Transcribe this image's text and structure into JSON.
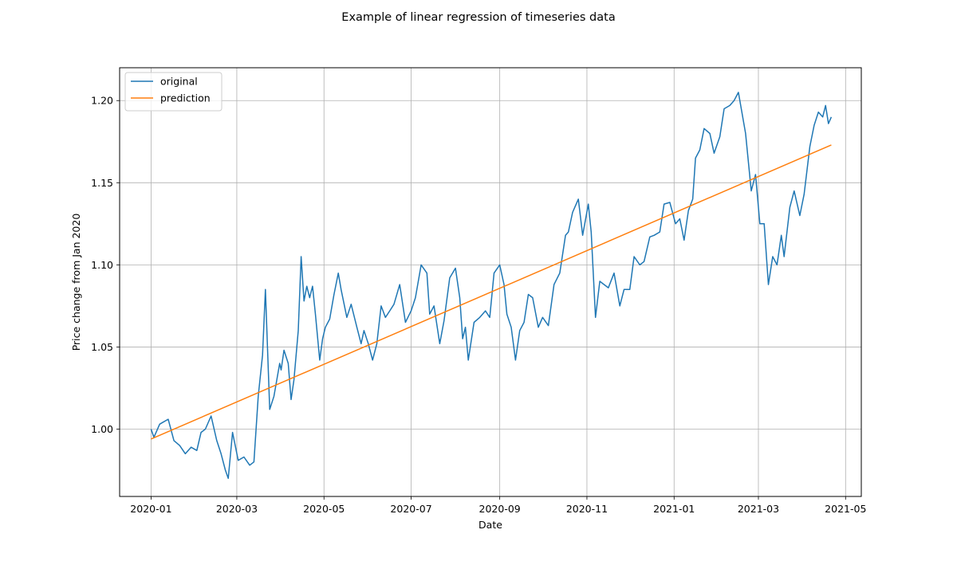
{
  "chart_data": {
    "type": "line",
    "title": "Example of linear regression of timeseries data",
    "xlabel": "Date",
    "ylabel": "Price change from Jan 2020",
    "x_ticks": [
      "2020-01",
      "2020-03",
      "2020-05",
      "2020-07",
      "2020-09",
      "2020-11",
      "2021-01",
      "2021-03",
      "2021-05"
    ],
    "y_ticks": [
      "1.00",
      "1.05",
      "1.10",
      "1.15",
      "1.20"
    ],
    "xlim": [
      "2019-12-10",
      "2021-05-12"
    ],
    "ylim": [
      0.959,
      1.22
    ],
    "grid": true,
    "legend_position": "top-left",
    "series": [
      {
        "name": "original",
        "color": "#1f77b4",
        "x": [
          "2020-01-01",
          "2020-01-03",
          "2020-01-07",
          "2020-01-09",
          "2020-01-13",
          "2020-01-17",
          "2020-01-21",
          "2020-01-25",
          "2020-01-29",
          "2020-02-02",
          "2020-02-05",
          "2020-02-08",
          "2020-02-12",
          "2020-02-16",
          "2020-02-19",
          "2020-02-22",
          "2020-02-24",
          "2020-02-27",
          "2020-03-02",
          "2020-03-06",
          "2020-03-10",
          "2020-03-13",
          "2020-03-16",
          "2020-03-19",
          "2020-03-21",
          "2020-03-24",
          "2020-03-27",
          "2020-03-31",
          "2020-04-01",
          "2020-04-03",
          "2020-04-06",
          "2020-04-08",
          "2020-04-10",
          "2020-04-13",
          "2020-04-15",
          "2020-04-17",
          "2020-04-19",
          "2020-04-21",
          "2020-04-23",
          "2020-04-25",
          "2020-04-28",
          "2020-04-30",
          "2020-05-02",
          "2020-05-05",
          "2020-05-08",
          "2020-05-11",
          "2020-05-13",
          "2020-05-17",
          "2020-05-20",
          "2020-05-24",
          "2020-05-27",
          "2020-05-29",
          "2020-06-01",
          "2020-06-04",
          "2020-06-07",
          "2020-06-10",
          "2020-06-13",
          "2020-06-16",
          "2020-06-19",
          "2020-06-23",
          "2020-06-27",
          "2020-07-01",
          "2020-07-04",
          "2020-07-08",
          "2020-07-12",
          "2020-07-14",
          "2020-07-17",
          "2020-07-21",
          "2020-07-24",
          "2020-07-28",
          "2020-08-01",
          "2020-08-04",
          "2020-08-06",
          "2020-08-08",
          "2020-08-10",
          "2020-08-14",
          "2020-08-18",
          "2020-08-22",
          "2020-08-25",
          "2020-08-28",
          "2020-09-01",
          "2020-09-04",
          "2020-09-06",
          "2020-09-09",
          "2020-09-12",
          "2020-09-15",
          "2020-09-18",
          "2020-09-21",
          "2020-09-24",
          "2020-09-28",
          "2020-10-01",
          "2020-10-05",
          "2020-10-09",
          "2020-10-13",
          "2020-10-17",
          "2020-10-19",
          "2020-10-22",
          "2020-10-26",
          "2020-10-29",
          "2020-11-02",
          "2020-11-04",
          "2020-11-07",
          "2020-11-10",
          "2020-11-13",
          "2020-11-16",
          "2020-11-20",
          "2020-11-24",
          "2020-11-27",
          "2020-12-01",
          "2020-12-04",
          "2020-12-08",
          "2020-12-11",
          "2020-12-15",
          "2020-12-18",
          "2020-12-22",
          "2020-12-25",
          "2020-12-29",
          "2021-01-02",
          "2021-01-05",
          "2021-01-08",
          "2021-01-11",
          "2021-01-14",
          "2021-01-16",
          "2021-01-19",
          "2021-01-22",
          "2021-01-26",
          "2021-01-29",
          "2021-02-02",
          "2021-02-05",
          "2021-02-09",
          "2021-02-12",
          "2021-02-15",
          "2021-02-17",
          "2021-02-20",
          "2021-02-24",
          "2021-02-27",
          "2021-03-02",
          "2021-03-05",
          "2021-03-08",
          "2021-03-11",
          "2021-03-14",
          "2021-03-17",
          "2021-03-19",
          "2021-03-23",
          "2021-03-26",
          "2021-03-30",
          "2021-04-02",
          "2021-04-06",
          "2021-04-09",
          "2021-04-12",
          "2021-04-15",
          "2021-04-17",
          "2021-04-19",
          "2021-04-21"
        ],
        "y": [
          1.0,
          0.995,
          1.003,
          1.004,
          1.006,
          0.993,
          0.99,
          0.985,
          0.989,
          0.987,
          0.998,
          1.0,
          1.008,
          0.993,
          0.985,
          0.975,
          0.97,
          0.998,
          0.981,
          0.983,
          0.978,
          0.98,
          1.02,
          1.045,
          1.085,
          1.012,
          1.02,
          1.04,
          1.036,
          1.048,
          1.04,
          1.018,
          1.03,
          1.06,
          1.105,
          1.078,
          1.087,
          1.08,
          1.087,
          1.07,
          1.042,
          1.055,
          1.062,
          1.067,
          1.082,
          1.095,
          1.085,
          1.068,
          1.076,
          1.062,
          1.052,
          1.06,
          1.052,
          1.042,
          1.052,
          1.075,
          1.068,
          1.072,
          1.076,
          1.088,
          1.065,
          1.072,
          1.08,
          1.1,
          1.095,
          1.07,
          1.075,
          1.052,
          1.066,
          1.092,
          1.098,
          1.08,
          1.055,
          1.062,
          1.042,
          1.065,
          1.068,
          1.072,
          1.068,
          1.095,
          1.1,
          1.088,
          1.07,
          1.062,
          1.042,
          1.06,
          1.065,
          1.082,
          1.08,
          1.062,
          1.068,
          1.063,
          1.088,
          1.095,
          1.118,
          1.12,
          1.132,
          1.14,
          1.118,
          1.137,
          1.12,
          1.068,
          1.09,
          1.088,
          1.086,
          1.095,
          1.075,
          1.085,
          1.085,
          1.105,
          1.1,
          1.102,
          1.117,
          1.118,
          1.12,
          1.137,
          1.138,
          1.125,
          1.128,
          1.115,
          1.133,
          1.14,
          1.165,
          1.17,
          1.183,
          1.18,
          1.168,
          1.178,
          1.195,
          1.197,
          1.2,
          1.205,
          1.195,
          1.18,
          1.145,
          1.155,
          1.125,
          1.125,
          1.088,
          1.105,
          1.1,
          1.118,
          1.105,
          1.135,
          1.145,
          1.13,
          1.143,
          1.172,
          1.185,
          1.193,
          1.19,
          1.197,
          1.186,
          1.19
        ]
      },
      {
        "name": "prediction",
        "color": "#ff7f0e",
        "x": [
          "2020-01-01",
          "2021-04-21"
        ],
        "y": [
          0.994,
          1.173
        ]
      }
    ]
  }
}
